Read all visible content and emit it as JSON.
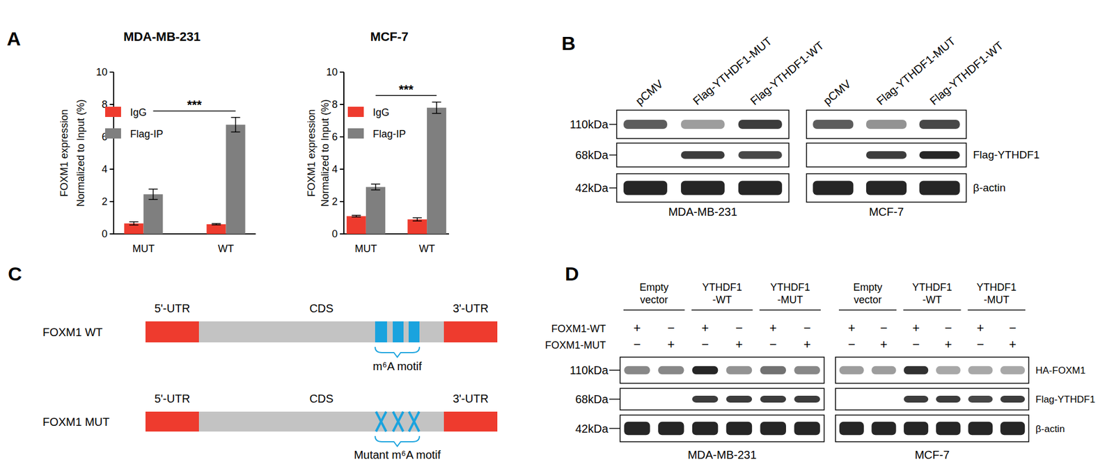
{
  "panel_labels": [
    "A",
    "B",
    "C",
    "D"
  ],
  "chart_data": [
    {
      "type": "bar",
      "title": "MDA-MB-231",
      "y_label": [
        "FOXM1 expression",
        "Normalized to Input (%)"
      ],
      "categories": [
        "MUT",
        "WT"
      ],
      "series": [
        {
          "name": "IgG",
          "color": "#ee3b2e",
          "values": [
            0.65,
            0.6
          ],
          "errors": [
            0.1,
            0.04
          ]
        },
        {
          "name": "Flag-IP",
          "color": "#7f7f7f",
          "values": [
            2.45,
            6.75
          ],
          "errors": [
            0.32,
            0.45
          ]
        }
      ],
      "ylim": [
        0,
        10
      ],
      "yticks": [
        0,
        2,
        4,
        6,
        8,
        10
      ],
      "legend": "top-left",
      "annotation": "***"
    },
    {
      "type": "bar",
      "title": "MCF-7",
      "y_label": [
        "FOXM1 expression",
        "Normalized to Input (%)"
      ],
      "categories": [
        "MUT",
        "WT"
      ],
      "series": [
        {
          "name": "IgG",
          "color": "#ee3b2e",
          "values": [
            1.1,
            0.9
          ],
          "errors": [
            0.05,
            0.1
          ]
        },
        {
          "name": "Flag-IP",
          "color": "#7f7f7f",
          "values": [
            2.9,
            7.8
          ],
          "errors": [
            0.18,
            0.35
          ]
        }
      ],
      "ylim": [
        0,
        10
      ],
      "yticks": [
        0,
        2,
        4,
        6,
        8,
        10
      ],
      "legend": "top-left",
      "annotation": "***"
    }
  ],
  "western_blot_b": {
    "lanes": [
      "pCMV",
      "Flag-YTHDF1-MUT",
      "Flag-YTHDF1-WT"
    ],
    "kda": [
      "110kDa",
      "68kDa",
      "42kDa"
    ],
    "row_labels": [
      null,
      "Flag-YTHDF1",
      "β-actin"
    ],
    "cell_lines": [
      {
        "name": "MDA-MB-231",
        "band_intensity": [
          [
            0.75,
            0.45,
            0.9
          ],
          [
            0,
            0.9,
            0.85
          ],
          [
            1,
            1,
            1
          ]
        ]
      },
      {
        "name": "MCF-7",
        "band_intensity": [
          [
            0.75,
            0.5,
            0.85
          ],
          [
            0,
            0.9,
            1
          ],
          [
            1,
            1,
            1
          ]
        ]
      }
    ]
  },
  "diagram_c": {
    "constructs": [
      {
        "name": "FOXM1 WT",
        "regions": [
          "5'-UTR",
          "CDS",
          "3'-UTR"
        ],
        "motif_label": "m⁶A motif",
        "mutant": false
      },
      {
        "name": "FOXM1 MUT",
        "regions": [
          "5'-UTR",
          "CDS",
          "3'-UTR"
        ],
        "motif_label": "Mutant m⁶A motif",
        "mutant": true
      }
    ]
  },
  "western_blot_d": {
    "groups": [
      [
        "Empty",
        "vector"
      ],
      [
        "YTHDF1",
        "-WT"
      ],
      [
        "YTHDF1",
        "-MUT"
      ]
    ],
    "conditions": [
      {
        "label": "FOXM1-WT",
        "signs": [
          "+",
          "−",
          "+",
          "−",
          "+",
          "−"
        ]
      },
      {
        "label": "FOXM1-MUT",
        "signs": [
          "−",
          "+",
          "−",
          "+",
          "−",
          "+"
        ]
      }
    ],
    "kda": [
      "110kDa",
      "68kDa",
      "42kDa"
    ],
    "row_labels": [
      "HA-FOXM1",
      "Flag-YTHDF1",
      "β-actin"
    ],
    "cell_lines": [
      {
        "name": "MDA-MB-231",
        "band_intensity": [
          [
            0.55,
            0.55,
            1,
            0.5,
            0.65,
            0.55
          ],
          [
            0,
            0,
            0.9,
            0.9,
            0.9,
            0.9
          ],
          [
            1,
            1,
            1,
            1,
            1,
            1
          ]
        ]
      },
      {
        "name": "MCF-7",
        "band_intensity": [
          [
            0.45,
            0.45,
            0.95,
            0.4,
            0.4,
            0.4
          ],
          [
            0,
            0,
            0.9,
            0.9,
            0.85,
            0.9
          ],
          [
            1,
            1,
            1,
            1,
            1,
            1
          ]
        ]
      }
    ]
  }
}
